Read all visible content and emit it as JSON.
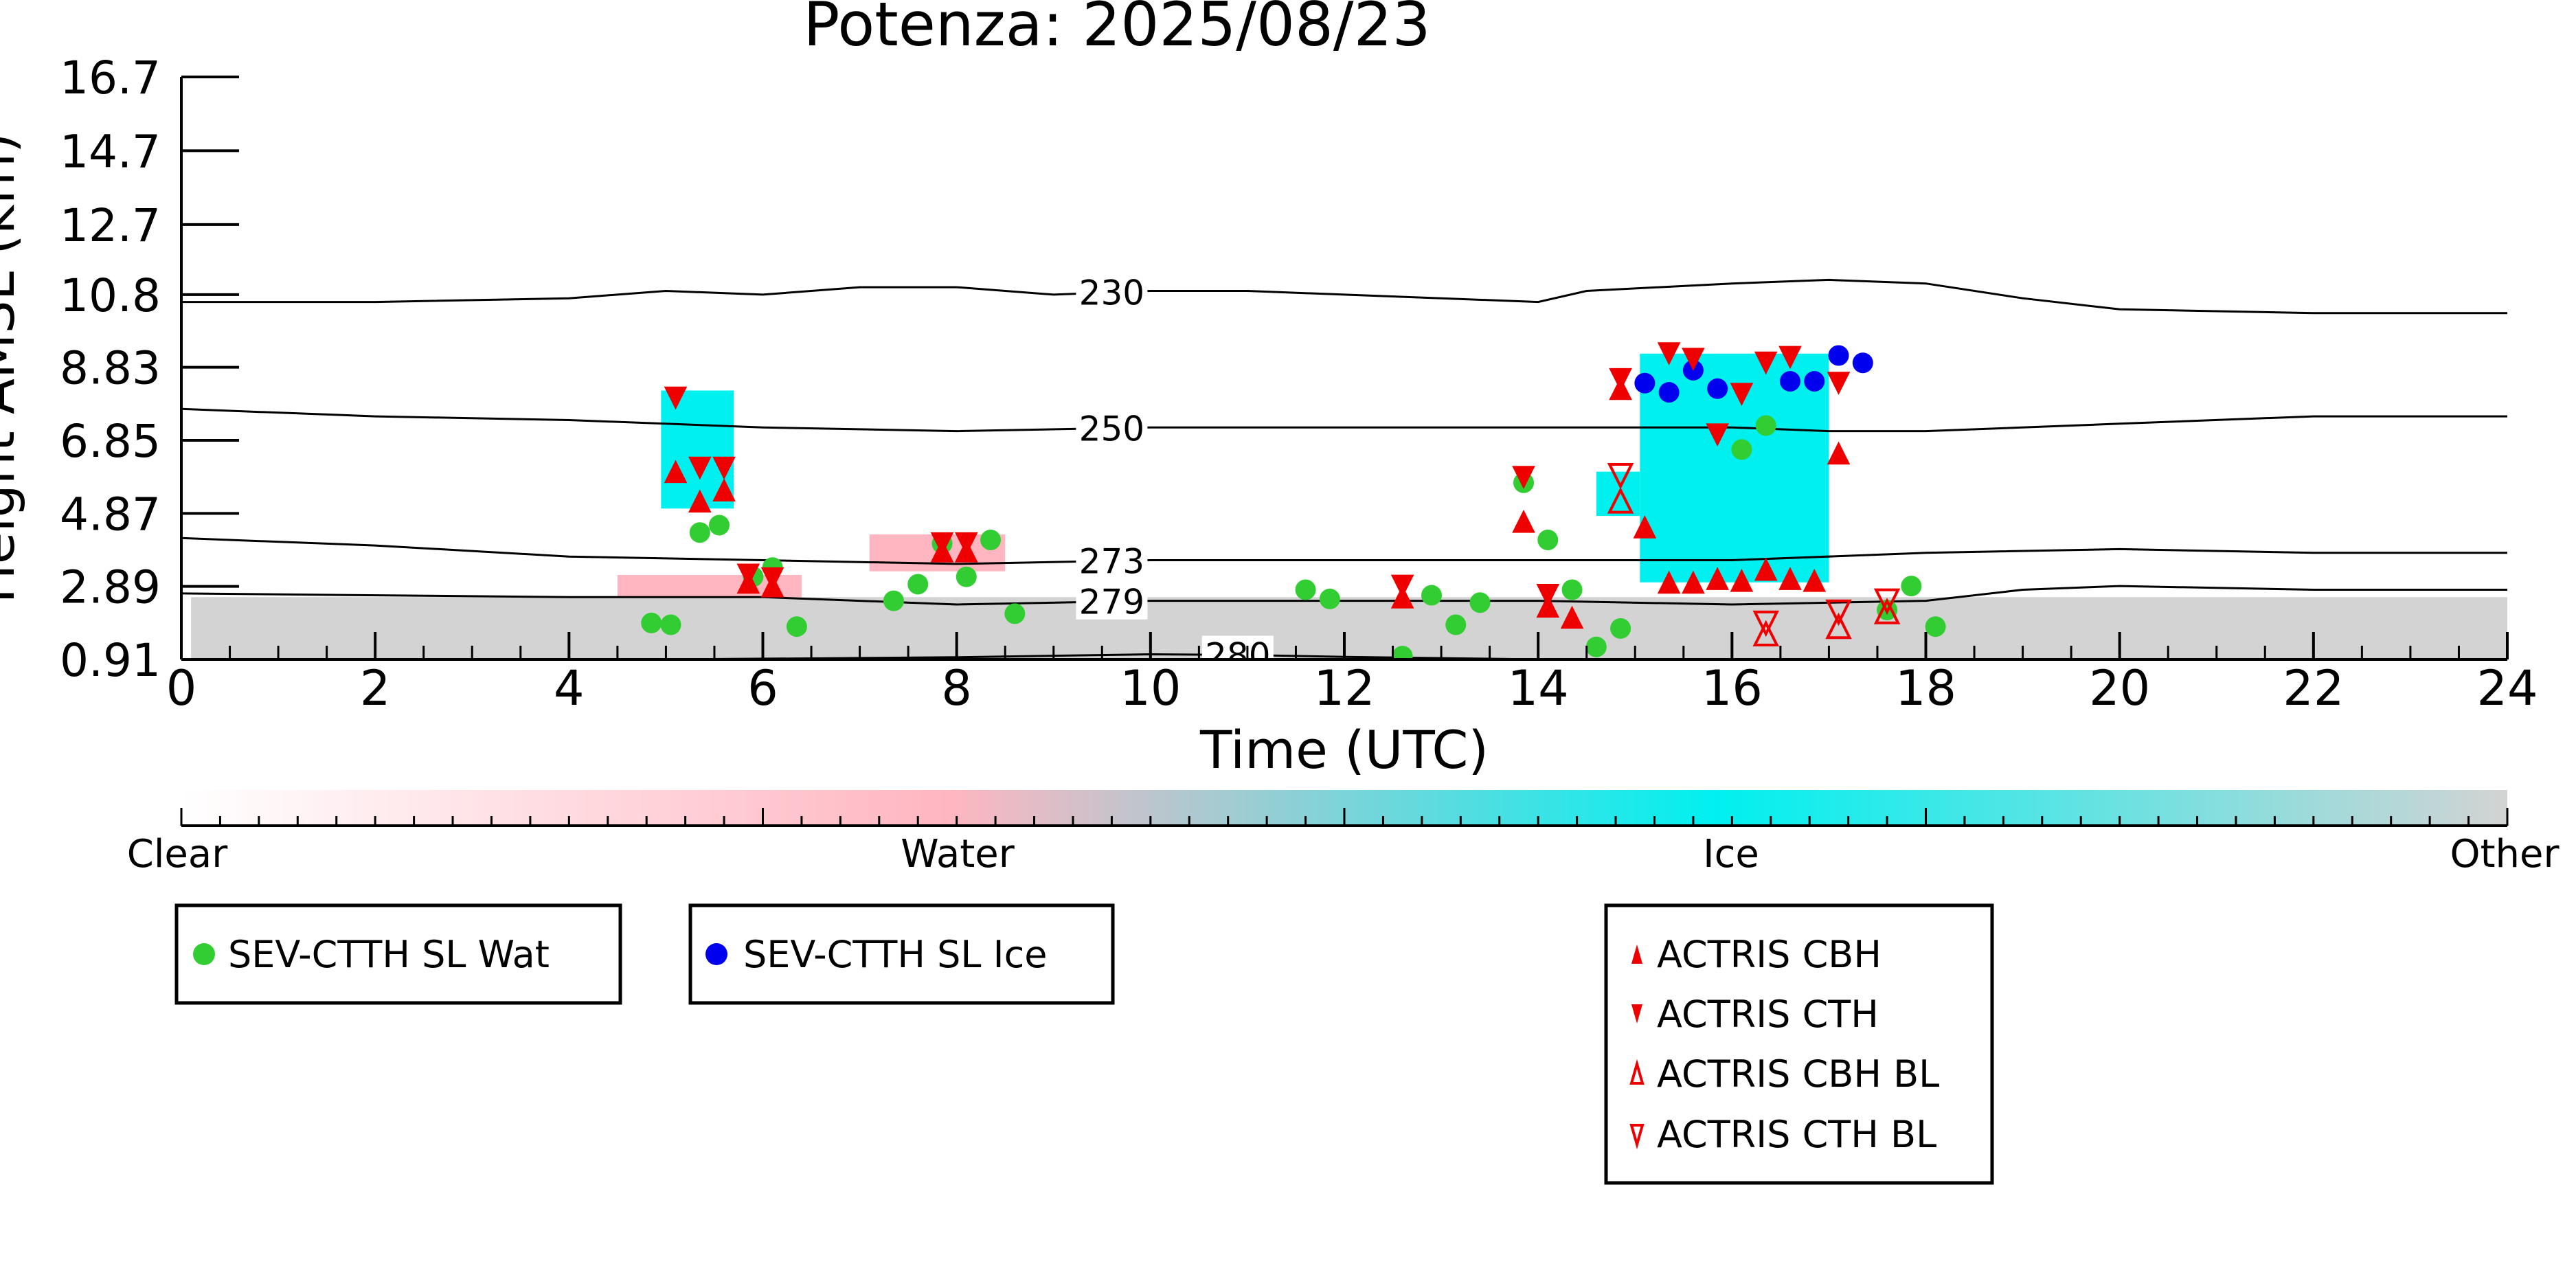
{
  "chart_data": {
    "type": "scatter",
    "title": "Potenza: 2025/08/23",
    "xlabel": "Time (UTC)",
    "ylabel": "Height AMSL (km)",
    "xlim": [
      0,
      24
    ],
    "ylim": [
      0.91,
      16.7
    ],
    "xticks": [
      "0",
      "2",
      "4",
      "6",
      "8",
      "10",
      "12",
      "14",
      "16",
      "18",
      "20",
      "22",
      "24"
    ],
    "yticks": [
      "0.91",
      "2.89",
      "4.87",
      "6.85",
      "8.83",
      "10.8",
      "12.7",
      "14.7",
      "16.7"
    ],
    "colors": {
      "clear": "#ffffff",
      "water": "#ffb6c1",
      "ice": "#00f0f0",
      "other": "#d3d3d3",
      "sev_wat": "#32cd32",
      "sev_ice": "#0000ee",
      "actris": "#ee0000"
    },
    "colorbar": {
      "labels": [
        "Clear",
        "Water",
        "Ice",
        "Other"
      ]
    },
    "contours": [
      {
        "label": "230",
        "label_x": 9.6,
        "points": [
          [
            0,
            10.6
          ],
          [
            2,
            10.6
          ],
          [
            4,
            10.7
          ],
          [
            5,
            10.9
          ],
          [
            6,
            10.8
          ],
          [
            7,
            11.0
          ],
          [
            8,
            11.0
          ],
          [
            9,
            10.8
          ],
          [
            10,
            10.9
          ],
          [
            11,
            10.9
          ],
          [
            12,
            10.8
          ],
          [
            13,
            10.7
          ],
          [
            14,
            10.6
          ],
          [
            14.5,
            10.9
          ],
          [
            16,
            11.1
          ],
          [
            17,
            11.2
          ],
          [
            18,
            11.1
          ],
          [
            19,
            10.7
          ],
          [
            20,
            10.4
          ],
          [
            22,
            10.3
          ],
          [
            24,
            10.3
          ]
        ]
      },
      {
        "label": "250",
        "label_x": 9.6,
        "points": [
          [
            0,
            7.7
          ],
          [
            2,
            7.5
          ],
          [
            4,
            7.4
          ],
          [
            6,
            7.2
          ],
          [
            8,
            7.1
          ],
          [
            10,
            7.2
          ],
          [
            12,
            7.2
          ],
          [
            14,
            7.2
          ],
          [
            16,
            7.2
          ],
          [
            17,
            7.1
          ],
          [
            18,
            7.1
          ],
          [
            20,
            7.3
          ],
          [
            22,
            7.5
          ],
          [
            24,
            7.5
          ]
        ]
      },
      {
        "label": "273",
        "label_x": 9.6,
        "points": [
          [
            0,
            4.2
          ],
          [
            2,
            4.0
          ],
          [
            4,
            3.7
          ],
          [
            6,
            3.6
          ],
          [
            8,
            3.5
          ],
          [
            10,
            3.6
          ],
          [
            12,
            3.6
          ],
          [
            14,
            3.6
          ],
          [
            16,
            3.6
          ],
          [
            18,
            3.8
          ],
          [
            20,
            3.9
          ],
          [
            22,
            3.8
          ],
          [
            24,
            3.8
          ]
        ]
      },
      {
        "label": "279",
        "label_x": 9.6,
        "points": [
          [
            0,
            2.7
          ],
          [
            4,
            2.6
          ],
          [
            6,
            2.6
          ],
          [
            8,
            2.4
          ],
          [
            10,
            2.5
          ],
          [
            12,
            2.5
          ],
          [
            14,
            2.5
          ],
          [
            16,
            2.4
          ],
          [
            18,
            2.5
          ],
          [
            19,
            2.8
          ],
          [
            20,
            2.9
          ],
          [
            22,
            2.8
          ],
          [
            24,
            2.8
          ]
        ]
      },
      {
        "label": "280",
        "label_x": 10.9,
        "points": [
          [
            5,
            0.91
          ],
          [
            8,
            0.97
          ],
          [
            10,
            1.05
          ],
          [
            11,
            1.03
          ],
          [
            12,
            0.98
          ],
          [
            14,
            0.91
          ]
        ]
      }
    ],
    "series": [
      {
        "name": "SEV-CTTH SL Wat",
        "marker": "circle-filled",
        "x": [
          4.85,
          5.05,
          5.35,
          5.55,
          5.9,
          6.1,
          6.35,
          7.35,
          7.6,
          7.85,
          8.1,
          8.35,
          8.6,
          11.6,
          11.85,
          12.6,
          12.9,
          13.15,
          13.4,
          13.85,
          14.1,
          14.35,
          14.6,
          14.85,
          16.1,
          16.35,
          17.6,
          17.85,
          18.1
        ],
        "y": [
          1.9,
          1.85,
          4.35,
          4.55,
          3.15,
          3.4,
          1.8,
          2.5,
          2.95,
          4.05,
          3.15,
          4.15,
          2.15,
          2.8,
          2.55,
          1.0,
          2.65,
          1.85,
          2.45,
          5.7,
          4.15,
          2.8,
          1.25,
          1.75,
          6.6,
          7.25,
          2.25,
          2.9,
          1.8
        ]
      },
      {
        "name": "SEV-CTTH SL Ice",
        "marker": "circle-filled",
        "x": [
          15.1,
          15.35,
          15.6,
          15.85,
          16.6,
          16.85,
          17.1,
          17.35
        ],
        "y": [
          8.4,
          8.15,
          8.75,
          8.25,
          8.45,
          8.45,
          9.15,
          8.95
        ]
      },
      {
        "name": "ACTRIS CBH",
        "marker": "triangle-up-filled",
        "x": [
          5.1,
          5.35,
          5.6,
          5.85,
          6.1,
          7.85,
          8.1,
          12.6,
          13.85,
          14.1,
          14.35,
          14.85,
          15.1,
          15.35,
          15.6,
          15.85,
          16.1,
          16.35,
          16.6,
          16.85,
          17.1
        ],
        "y": [
          6.0,
          5.2,
          5.5,
          3.0,
          2.9,
          3.85,
          3.85,
          2.6,
          4.65,
          2.35,
          2.05,
          8.25,
          4.5,
          3.0,
          3.0,
          3.1,
          3.05,
          3.35,
          3.1,
          3.05,
          6.5
        ]
      },
      {
        "name": "ACTRIS CTH",
        "marker": "triangle-down-filled",
        "x": [
          5.1,
          5.35,
          5.6,
          5.85,
          6.1,
          7.85,
          8.1,
          12.6,
          13.85,
          14.1,
          14.85,
          15.35,
          15.6,
          15.85,
          16.1,
          16.35,
          16.6,
          17.1
        ],
        "y": [
          8.0,
          6.1,
          6.1,
          3.2,
          3.1,
          4.05,
          4.05,
          2.9,
          5.85,
          2.65,
          8.5,
          9.2,
          9.05,
          7.0,
          8.1,
          8.95,
          9.1,
          8.4
        ]
      },
      {
        "name": "ACTRIS CBH BL",
        "marker": "triangle-up-open",
        "x": [
          14.85,
          16.35,
          17.1,
          17.6
        ],
        "y": [
          5.2,
          1.6,
          1.8,
          2.2
        ]
      },
      {
        "name": "ACTRIS CTH BL",
        "marker": "triangle-down-open",
        "x": [
          14.85,
          16.35,
          17.1,
          17.6
        ],
        "y": [
          5.9,
          1.9,
          2.2,
          2.5
        ]
      }
    ],
    "cloud_regions": [
      {
        "class": "other",
        "x": [
          0.1,
          24
        ],
        "y": [
          0.91,
          2.6
        ]
      },
      {
        "class": "ice",
        "x": [
          4.95,
          5.7
        ],
        "y": [
          5.0,
          8.2
        ]
      },
      {
        "class": "ice",
        "x": [
          15.05,
          17.0
        ],
        "y": [
          3.0,
          9.2
        ]
      },
      {
        "class": "ice",
        "x": [
          14.6,
          15.05
        ],
        "y": [
          4.8,
          6.0
        ]
      },
      {
        "class": "water",
        "x": [
          7.1,
          8.5
        ],
        "y": [
          3.3,
          4.3
        ]
      },
      {
        "class": "water",
        "x": [
          4.5,
          6.4
        ],
        "y": [
          2.6,
          3.2
        ]
      }
    ]
  }
}
